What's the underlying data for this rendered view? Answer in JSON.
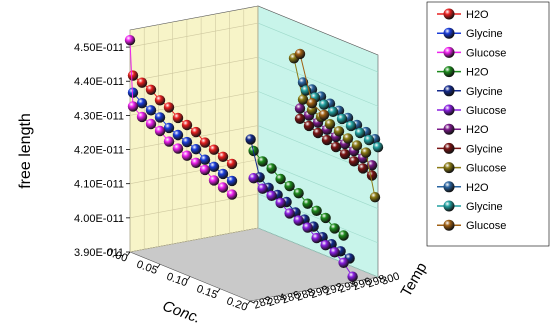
{
  "chart_data": {
    "type": "scatter",
    "view": "3d",
    "xlabel": "Conc.",
    "ylabel": "Temp",
    "zlabel": "free length",
    "x_ticks": [
      "0.00",
      "0.05",
      "0.10",
      "0.15",
      "0.20"
    ],
    "y_ticks": [
      "282",
      "284",
      "286",
      "288",
      "290",
      "292",
      "294",
      "296",
      "298",
      "300"
    ],
    "z_ticks": [
      "3.90E-011",
      "4.00E-011",
      "4.10E-011",
      "4.20E-011",
      "4.30E-011",
      "4.40E-011",
      "4.50E-011"
    ],
    "xlim": [
      0,
      0.2
    ],
    "ylim": [
      282,
      300
    ],
    "zlim": [
      3.9e-11,
      4.55e-11
    ],
    "grid": true,
    "legend_position": "right",
    "colors": {
      "back_wall": "#f7f4c8",
      "side_wall": "#c8f4ea",
      "floor": "#c9c9c9"
    },
    "series": [
      {
        "name": "H2O",
        "color": "#e82020",
        "x": [
          0.005,
          0.02,
          0.035,
          0.05,
          0.065,
          0.08,
          0.095,
          0.11,
          0.125,
          0.14,
          0.155,
          0.17
        ],
        "y": [
          282,
          282,
          282,
          282,
          282,
          282,
          282,
          282,
          282,
          282,
          282,
          282
        ],
        "z": [
          4.42e-11,
          4.41e-11,
          4.4e-11,
          4.38e-11,
          4.37e-11,
          4.35e-11,
          4.34e-11,
          4.33e-11,
          4.31e-11,
          4.3e-11,
          4.29e-11,
          4.28e-11
        ]
      },
      {
        "name": "Glycine",
        "color": "#1a3cd8",
        "x": [
          0.005,
          0.02,
          0.035,
          0.05,
          0.065,
          0.08,
          0.095,
          0.11,
          0.125,
          0.14,
          0.155,
          0.17
        ],
        "y": [
          282,
          282,
          282,
          282,
          282,
          282,
          282,
          282,
          282,
          282,
          282,
          282
        ],
        "z": [
          4.37e-11,
          4.35e-11,
          4.34e-11,
          4.33e-11,
          4.31e-11,
          4.3e-11,
          4.29e-11,
          4.28e-11,
          4.26e-11,
          4.25e-11,
          4.24e-11,
          4.23e-11
        ]
      },
      {
        "name": "Glucose",
        "color": "#ee22ee",
        "x": [
          0.0,
          0.005,
          0.02,
          0.035,
          0.05,
          0.065,
          0.08,
          0.095,
          0.11,
          0.125,
          0.14,
          0.155,
          0.17
        ],
        "y": [
          282,
          282,
          282,
          282,
          282,
          282,
          282,
          282,
          282,
          282,
          282,
          282,
          282
        ],
        "z": [
          4.52e-11,
          4.33e-11,
          4.31e-11,
          4.3e-11,
          4.29e-11,
          4.27e-11,
          4.26e-11,
          4.25e-11,
          4.24e-11,
          4.23e-11,
          4.21e-11,
          4.2e-11,
          4.19e-11
        ]
      },
      {
        "name": "H2O",
        "color": "#1c8a1c",
        "x": [
          0.04,
          0.055,
          0.07,
          0.085,
          0.1,
          0.115,
          0.13,
          0.145,
          0.16,
          0.175,
          0.19
        ],
        "y": [
          296,
          296,
          296,
          296,
          296,
          296,
          296,
          296,
          296,
          296,
          296
        ],
        "z": [
          4.17e-11,
          4.15e-11,
          4.14e-11,
          4.12e-11,
          4.11e-11,
          4.1e-11,
          4.08e-11,
          4.07e-11,
          4.06e-11,
          4.04e-11,
          4.03e-11
        ]
      },
      {
        "name": "Glycine",
        "color": "#142a8c",
        "x": [
          0.035,
          0.05,
          0.065,
          0.08,
          0.095,
          0.11,
          0.125,
          0.14,
          0.155,
          0.17,
          0.185,
          0.2
        ],
        "y": [
          296,
          296,
          296,
          296,
          296,
          296,
          296,
          296,
          296,
          296,
          296,
          296
        ],
        "z": [
          4.2e-11,
          4.1e-11,
          4.08e-11,
          4.07e-11,
          4.06e-11,
          4.04e-11,
          4.03e-11,
          4.02e-11,
          4e-11,
          3.99e-11,
          3.98e-11,
          3.97e-11
        ]
      },
      {
        "name": "Glucose",
        "color": "#8a1ee0",
        "x": [
          0.04,
          0.055,
          0.07,
          0.085,
          0.1,
          0.115,
          0.13,
          0.145,
          0.16,
          0.175,
          0.19,
          0.205
        ],
        "y": [
          296,
          296,
          296,
          296,
          296,
          296,
          296,
          296,
          296,
          296,
          296,
          296
        ],
        "z": [
          4.09e-11,
          4.07e-11,
          4.06e-11,
          4.05e-11,
          4.03e-11,
          4.02e-11,
          4.01e-11,
          3.99e-11,
          3.98e-11,
          3.97e-11,
          3.95e-11,
          3.92e-11
        ]
      },
      {
        "name": "H2O",
        "color": "#7a1a8a",
        "x": [
          0.07,
          0.085,
          0.1,
          0.115,
          0.13,
          0.145,
          0.16,
          0.175,
          0.19
        ],
        "y": [
          300,
          300,
          300,
          300,
          300,
          300,
          300,
          300,
          300
        ],
        "z": [
          4.3e-11,
          4.29e-11,
          4.28e-11,
          4.27e-11,
          4.26e-11,
          4.25e-11,
          4.24e-11,
          4.23e-11,
          4.22e-11
        ]
      },
      {
        "name": "Glycine",
        "color": "#7a1414",
        "x": [
          0.07,
          0.085,
          0.1,
          0.115,
          0.13,
          0.145,
          0.16,
          0.175,
          0.19
        ],
        "y": [
          300,
          300,
          300,
          300,
          300,
          300,
          300,
          300,
          300
        ],
        "z": [
          4.27e-11,
          4.26e-11,
          4.25e-11,
          4.24e-11,
          4.23e-11,
          4.22e-11,
          4.21e-11,
          4.2e-11,
          4.19e-11
        ]
      },
      {
        "name": "Glucose",
        "color": "#8a7a14",
        "x": [
          0.06,
          0.075,
          0.09,
          0.105,
          0.12,
          0.135,
          0.15,
          0.165,
          0.18,
          0.195
        ],
        "y": [
          300,
          300,
          300,
          300,
          300,
          300,
          300,
          300,
          300,
          300
        ],
        "z": [
          4.44e-11,
          4.33e-11,
          4.31e-11,
          4.3e-11,
          4.29e-11,
          4.28e-11,
          4.27e-11,
          4.26e-11,
          4.25e-11,
          4.13e-11
        ]
      },
      {
        "name": "H2O",
        "color": "#2a64a0",
        "x": [
          0.075,
          0.09,
          0.105,
          0.12,
          0.135,
          0.15,
          0.165,
          0.18,
          0.195
        ],
        "y": [
          300,
          300,
          300,
          300,
          300,
          300,
          300,
          300,
          300
        ],
        "z": [
          4.38e-11,
          4.37e-11,
          4.36e-11,
          4.35e-11,
          4.34e-11,
          4.33e-11,
          4.32e-11,
          4.31e-11,
          4.3e-11
        ]
      },
      {
        "name": "Glycine",
        "color": "#22a0a0",
        "x": [
          0.08,
          0.095,
          0.11,
          0.125,
          0.14,
          0.155,
          0.17,
          0.185,
          0.2
        ],
        "y": [
          300,
          300,
          300,
          300,
          300,
          300,
          300,
          300,
          300
        ],
        "z": [
          4.36e-11,
          4.35e-11,
          4.34e-11,
          4.33e-11,
          4.32e-11,
          4.31e-11,
          4.3e-11,
          4.29e-11,
          4.28e-11
        ]
      },
      {
        "name": "Glucose",
        "color": "#a06014",
        "x": [
          0.07,
          0.09,
          0.11
        ],
        "y": [
          300,
          300,
          300
        ],
        "z": [
          4.46e-11,
          4.33e-11,
          4.31e-11
        ]
      }
    ]
  }
}
